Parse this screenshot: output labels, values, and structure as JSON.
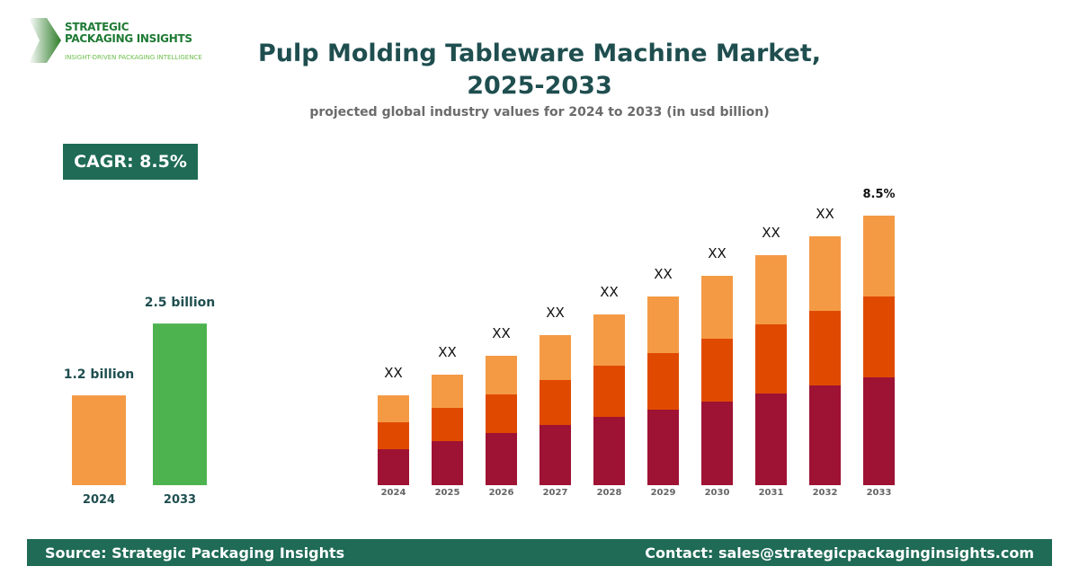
{
  "logo": {
    "line1": "STRATEGIC",
    "line2": "PACKAGING INSIGHTS",
    "tagline": "INSIGHT-DRIVEN PACKAGING INTELLIGENCE"
  },
  "header": {
    "title_line1": "Pulp Molding Tableware Machine Market,",
    "title_line2": "2025-2033",
    "subtitle": "projected global industry values for 2024 to 2033 (in usd billion)"
  },
  "cagr": {
    "label": "CAGR: 8.5%"
  },
  "footer": {
    "source": "Source: Strategic Packaging Insights",
    "contact": "Contact: sales@strategicpackaginginsights.com"
  },
  "chart_data": [
    {
      "type": "bar",
      "categories": [
        "2024",
        "2033"
      ],
      "values": [
        1.2,
        2.5
      ],
      "data_labels": [
        "1.2 billion",
        "2.5 billion"
      ],
      "colors": [
        "#f49a45",
        "#4db34f"
      ]
    },
    {
      "type": "stacked-bar",
      "categories": [
        "2024",
        "2025",
        "2026",
        "2027",
        "2028",
        "2029",
        "2030",
        "2031",
        "2032",
        "2033"
      ],
      "series": [
        {
          "values": [
            40,
            49,
            58,
            67,
            76,
            84,
            93,
            102,
            111,
            120
          ],
          "color": "#9e1233"
        },
        {
          "values": [
            30,
            37,
            43,
            50,
            57,
            63,
            70,
            77,
            83,
            90
          ],
          "color": "#e04a00"
        },
        {
          "values": [
            30,
            37,
            43,
            50,
            57,
            63,
            70,
            77,
            83,
            90
          ],
          "color": "#f49a45"
        }
      ],
      "data_labels": [
        "XX",
        "XX",
        "XX",
        "XX",
        "XX",
        "XX",
        "XX",
        "XX",
        "XX",
        "8.5%"
      ]
    }
  ]
}
